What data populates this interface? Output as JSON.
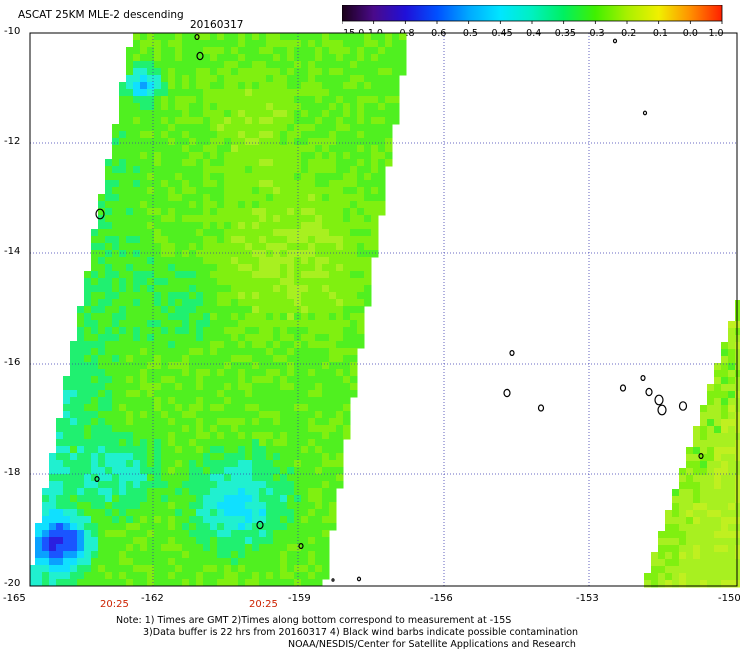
{
  "header": {
    "title": "ASCAT 25KM MLE-2 descending",
    "date": "20160317"
  },
  "colorbar": {
    "labels": [
      "-15.0",
      "-1.0",
      "-0.8",
      "-0.6",
      "-0.5",
      "-0.45",
      "-0.4",
      "-0.35",
      "-0.3",
      "-0.2",
      "-0.1",
      "0.0",
      "1.0"
    ],
    "colors": [
      "#1a0018",
      "#4a0a8a",
      "#2010d8",
      "#0050ff",
      "#00a8ff",
      "#00e6ff",
      "#00f0c0",
      "#00f060",
      "#40f000",
      "#a8f000",
      "#f0f000",
      "#ff9000",
      "#ff2000"
    ]
  },
  "axes": {
    "lat_labels": [
      "-10",
      "-12",
      "-14",
      "-16",
      "-18",
      "-20"
    ],
    "lon_labels": [
      "-165",
      "-162",
      "-159",
      "-156",
      "-153",
      "-150"
    ]
  },
  "times": [
    "20:25",
    "20:25"
  ],
  "notes": {
    "line1": "Note: 1) Times are GMT 2)Times along bottom correspond to measurement at -15S",
    "line2": "3)Data buffer is 22 hrs from 20160317 4) Black wind barbs indicate possible contamination",
    "line3": "NOAA/NESDIS/Center for Satellite Applications and Research"
  }
}
